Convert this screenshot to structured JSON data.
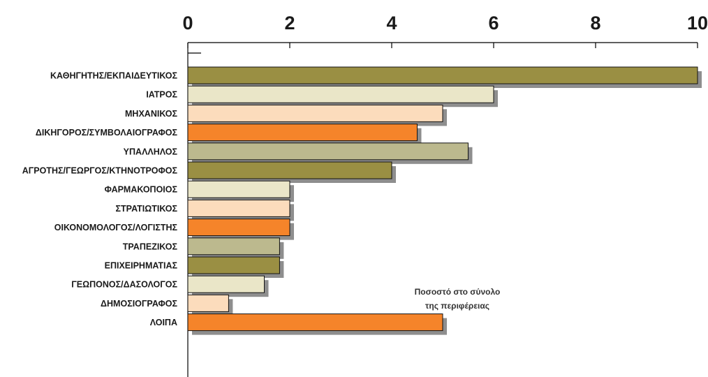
{
  "chart_data": {
    "type": "bar",
    "orientation": "horizontal",
    "categories": [
      "ΚΑΘΗΓΗΤΗΣ/ΕΚΠΑΙΔΕΥΤΙΚΟΣ",
      "ΙΑΤΡΟΣ",
      "ΜΗΧΑΝΙΚΟΣ",
      "ΔΙΚΗΓΟΡΟΣ/ΣΥΜΒΟΛΑΙΟΓΡΑΦΟΣ",
      "ΥΠΑΛΛΗΛΟΣ",
      "ΑΓΡΟΤΗΣ/ΓΕΩΡΓΟΣ/ΚΤΗΝΟΤΡΟΦΟΣ",
      "ΦΑΡΜΑΚΟΠΟΙΟΣ",
      "ΣΤΡΑΤΙΩΤΙΚΟΣ",
      "ΟΙΚΟΝΟΜΟΛΟΓΟΣ/ΛΟΓΙΣΤΗΣ",
      "ΤΡΑΠΕΖΙΚΟΣ",
      "ΕΠΙΧΕΙΡΗΜΑΤΙΑΣ",
      "ΓΕΩΠΟΝΟΣ/ΔΑΣΟΛΟΓΟΣ",
      "ΔΗΜΟΣΙΟΓΡΑΦΟΣ",
      "ΛΟΙΠΑ"
    ],
    "values": [
      10,
      6,
      5,
      4.5,
      5.5,
      4,
      2,
      2,
      2,
      1.8,
      1.8,
      1.5,
      0.8,
      5
    ],
    "bar_colors": [
      "#9a8f43",
      "#eae6c8",
      "#fcdcbc",
      "#f5842a",
      "#bcb98e",
      "#9a8f43",
      "#eae6c8",
      "#fcdcbc",
      "#f5842a",
      "#bcb98e",
      "#9a8f43",
      "#eae6c8",
      "#fcdcbc",
      "#f5842a"
    ],
    "shadow_color": "#8e8e8e",
    "xlim": [
      0,
      10
    ],
    "xticks": [
      "0",
      "2",
      "4",
      "6",
      "8",
      "10"
    ],
    "axis_position": "top",
    "annotation": [
      "Ποσοστό στο σύνολο",
      "της περιφέρειας"
    ]
  }
}
